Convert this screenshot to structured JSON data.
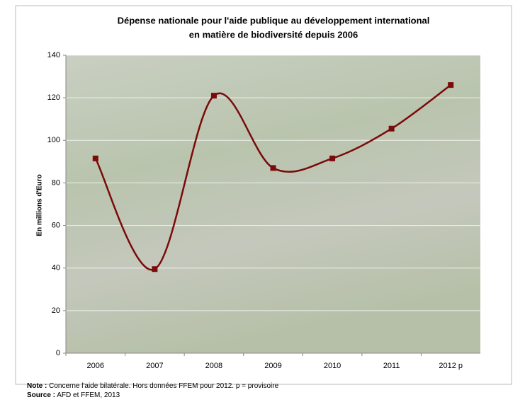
{
  "chart_data": {
    "type": "line",
    "title": [
      "Dépense nationale pour l'aide publique au développement international",
      "en matière de biodiversité depuis 2006"
    ],
    "y_label": "En millions d'Euro",
    "categories": [
      "2006",
      "2007",
      "2008",
      "2009",
      "2010",
      "2011",
      "2012 p"
    ],
    "series": [
      {
        "name": "Dépense",
        "color": "#7b0a0a",
        "values": [
          91.5,
          39.5,
          121,
          87,
          91.5,
          105.5,
          126
        ]
      }
    ],
    "ylim": [
      0,
      140
    ],
    "yticks": [
      0,
      20,
      40,
      60,
      80,
      100,
      120,
      140
    ],
    "grid": true,
    "smooth": true,
    "notes": [
      {
        "label": "Note :",
        "text": "Concerne l'aide bilatérale. Hors données FFEM pour 2012. p = provisoire"
      },
      {
        "label": "Source :",
        "text": "AFD et FFEM, 2013"
      }
    ]
  }
}
